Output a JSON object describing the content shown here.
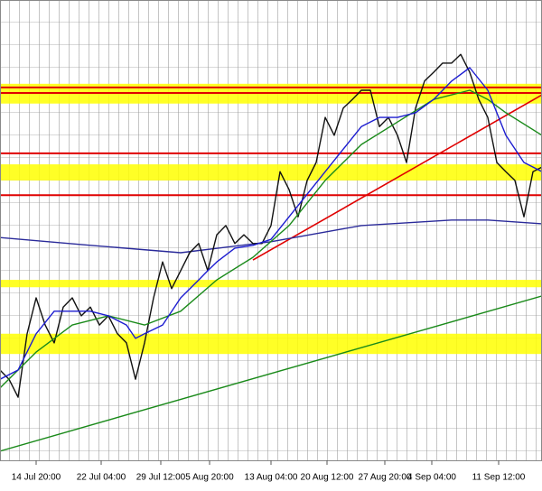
{
  "chart_data": {
    "type": "line",
    "xlim": [
      0,
      120
    ],
    "ylim": [
      0,
      100
    ],
    "xticks": [
      {
        "value": 8,
        "label": "14 Jul 20:00"
      },
      {
        "value": 22.4,
        "label": "22 Jul 04:00"
      },
      {
        "value": 35.6,
        "label": "29 Jul 12:00"
      },
      {
        "value": 46.4,
        "label": "5 Aug 20:00"
      },
      {
        "value": 60,
        "label": "13 Aug 04:00"
      },
      {
        "value": 72.4,
        "label": "20 Aug 12:00"
      },
      {
        "value": 85.2,
        "label": "27 Aug 20:00"
      },
      {
        "value": 95.6,
        "label": "4 Sep 04:00"
      },
      {
        "value": 110.4,
        "label": "11 Sep 12:00"
      }
    ],
    "zone_color": "#ffff00",
    "zones": [
      [
        77.5,
        81.8
      ],
      [
        60.8,
        64.3
      ],
      [
        37.6,
        39.2
      ],
      [
        23.1,
        27.5
      ]
    ],
    "level_color": "#e00000",
    "levels": [
      81.0,
      79.8,
      66.7,
      57.6
    ],
    "trendlines": [
      {
        "color": "#e00000",
        "x": [
          56,
          120
        ],
        "values": [
          43.5,
          79.4
        ]
      }
    ],
    "series": [
      {
        "color": "#2a2a9a",
        "x": [
          0,
          20,
          40,
          60,
          80,
          100,
          108,
          120
        ],
        "values": [
          48.4,
          46.7,
          45.1,
          47.5,
          51.0,
          52.2,
          52.2,
          51.4
        ]
      },
      {
        "color": "#1a8a1a",
        "x": [
          0,
          120
        ],
        "values": [
          2.0,
          35.7
        ]
      },
      {
        "color": "#111111",
        "x": [
          0,
          2,
          4,
          6,
          8,
          10,
          12,
          14,
          16,
          18,
          20,
          22,
          24,
          26,
          28,
          30,
          32,
          34,
          36,
          38,
          40,
          42,
          44,
          46,
          48,
          50,
          52,
          54,
          56,
          58,
          60,
          62,
          64,
          66,
          68,
          70,
          72,
          74,
          76,
          78,
          80,
          82,
          84,
          86,
          88,
          90,
          92,
          94,
          96,
          98,
          100,
          102,
          104,
          106,
          108,
          110,
          112,
          114,
          116,
          118,
          120
        ],
        "values": [
          19.6,
          17.6,
          13.7,
          27.5,
          35.3,
          29.4,
          25.5,
          33.3,
          35.3,
          31.4,
          33.3,
          29.4,
          31.4,
          27.5,
          25.5,
          17.6,
          25.5,
          35.3,
          43.1,
          37.3,
          41.2,
          45.1,
          47.1,
          41.2,
          49.0,
          51.0,
          47.1,
          49.0,
          47.1,
          47.1,
          51.0,
          62.7,
          58.8,
          52.9,
          60.8,
          64.7,
          74.5,
          70.6,
          76.5,
          78.4,
          80.4,
          80.4,
          72.5,
          74.5,
          70.6,
          64.7,
          76.5,
          82.4,
          84.3,
          86.3,
          86.3,
          88.2,
          84.3,
          78.4,
          74.5,
          64.7,
          62.7,
          60.8,
          52.9,
          62.7,
          63.7
        ]
      },
      {
        "color": "#1a8a1a",
        "x": [
          0,
          8,
          16,
          24,
          32,
          40,
          48,
          56,
          64,
          72,
          80,
          88,
          96,
          100,
          104,
          108,
          112,
          120
        ],
        "values": [
          15.7,
          23.5,
          29.4,
          31.4,
          29.4,
          32.4,
          39.2,
          44.1,
          51.0,
          60.8,
          68.6,
          73.5,
          78.4,
          79.4,
          80.4,
          78.4,
          75.5,
          70.6
        ]
      },
      {
        "color": "#1c1cd0",
        "x": [
          0,
          4,
          8,
          12,
          16,
          20,
          24,
          28,
          30,
          32,
          36,
          40,
          44,
          46,
          48,
          52,
          56,
          60,
          64,
          68,
          72,
          76,
          80,
          84,
          88,
          92,
          96,
          100,
          104,
          108,
          112,
          116,
          120
        ],
        "values": [
          17.6,
          19.6,
          27.5,
          32.4,
          32.4,
          32.4,
          31.4,
          29.4,
          26.5,
          27.5,
          29.4,
          35.3,
          39.2,
          41.2,
          43.1,
          46.1,
          46.7,
          48.0,
          52.9,
          57.8,
          62.7,
          67.6,
          72.5,
          74.5,
          74.5,
          75.5,
          78.4,
          82.4,
          85.3,
          80.4,
          70.6,
          64.7,
          62.7
        ]
      }
    ]
  }
}
